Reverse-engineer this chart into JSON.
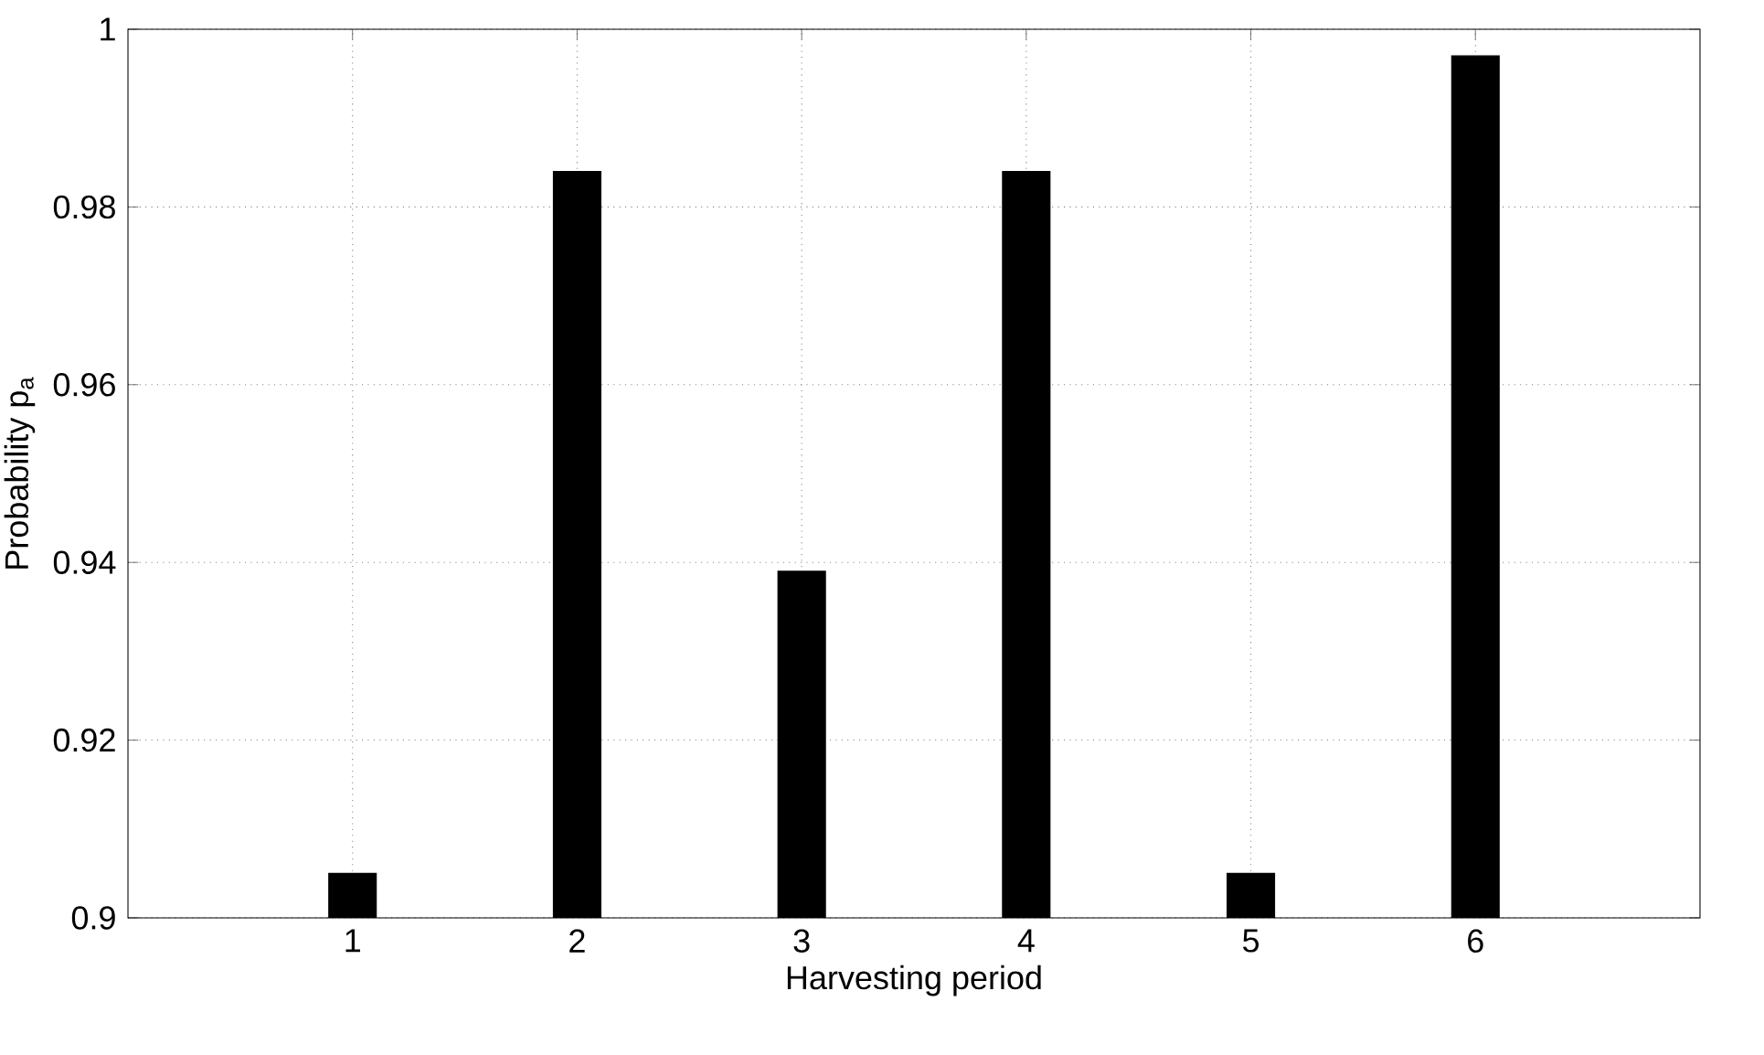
{
  "chart_data": {
    "type": "bar",
    "xlabel": "Harvesting period",
    "ylabel": "Probability p$_{a}$",
    "x": [
      1,
      2,
      3,
      4,
      5,
      6
    ],
    "values": [
      0.905,
      0.984,
      0.939,
      0.984,
      0.905,
      0.997
    ],
    "color": "#000000",
    "xlim": [
      0,
      7
    ],
    "xticks": [
      1,
      2,
      3,
      4,
      5,
      6
    ],
    "ylim": [
      0.9,
      1
    ],
    "yticks": [
      0.9,
      0.92,
      0.94,
      0.96,
      0.98,
      1
    ],
    "grid": true
  }
}
